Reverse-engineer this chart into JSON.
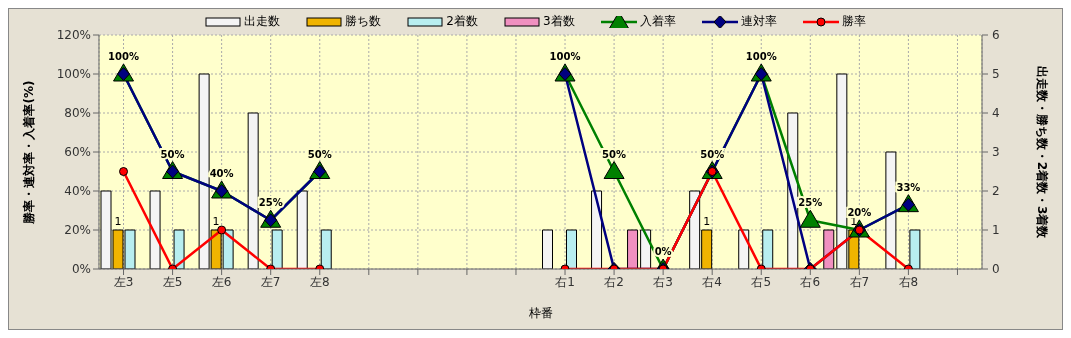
{
  "chart_data": {
    "type": "bar",
    "categories": [
      "左3",
      "左5",
      "左6",
      "左7",
      "左8",
      null,
      null,
      null,
      null,
      "右1",
      "右2",
      "右3",
      "右4",
      "右5",
      "右6",
      "右7",
      "右8",
      null
    ],
    "xlabel": "枠番",
    "ylabel": "勝率・連対率・入着率(%)",
    "y2label": "出走数・勝ち数・2着数・3着数",
    "series": [
      {
        "name": "出走数",
        "axis": "y2",
        "color": "#f4f4f4",
        "values": [
          2,
          2,
          5,
          4,
          2,
          null,
          null,
          null,
          null,
          1,
          2,
          1,
          2,
          1,
          4,
          5,
          3,
          null
        ]
      },
      {
        "name": "勝ち数",
        "axis": "y2",
        "color": "#f0b400",
        "values": [
          1,
          0,
          1,
          0,
          0,
          null,
          null,
          null,
          null,
          0,
          0,
          0,
          1,
          0,
          0,
          1,
          0,
          null
        ],
        "value_labels": [
          "1",
          null,
          "1",
          null,
          null,
          null,
          null,
          null,
          null,
          null,
          null,
          null,
          "1",
          null,
          null,
          "1",
          null,
          null
        ]
      },
      {
        "name": "2着数",
        "axis": "y2",
        "color": "#b8eef0",
        "values": [
          1,
          1,
          1,
          1,
          1,
          null,
          null,
          null,
          null,
          1,
          0,
          0,
          0,
          1,
          0,
          0,
          1,
          null
        ]
      },
      {
        "name": "3着数",
        "axis": "y2",
        "color": "#f090c0",
        "values": [
          0,
          0,
          0,
          0,
          0,
          null,
          null,
          null,
          null,
          0,
          1,
          0,
          0,
          0,
          1,
          0,
          0,
          null
        ]
      },
      {
        "name": "入着率",
        "type": "line",
        "marker": "triangle",
        "color": "#008000",
        "values": [
          100,
          50,
          40,
          25,
          50,
          null,
          null,
          null,
          null,
          100,
          50,
          0,
          50,
          100,
          25,
          20,
          33,
          null
        ],
        "value_labels": [
          "100%",
          "50%",
          "40%",
          "25%",
          "50%",
          null,
          null,
          null,
          null,
          "100%",
          "50%",
          "0%",
          "50%",
          "100%",
          "25%",
          "20%",
          "33%",
          null
        ]
      },
      {
        "name": "連対率",
        "type": "line",
        "marker": "diamond",
        "color": "#000080",
        "values": [
          100,
          50,
          40,
          25,
          50,
          null,
          null,
          null,
          null,
          100,
          0,
          0,
          50,
          100,
          0,
          20,
          33,
          null
        ]
      },
      {
        "name": "勝率",
        "type": "line",
        "marker": "circle",
        "color": "#ff0000",
        "values": [
          50,
          0,
          20,
          0,
          0,
          null,
          null,
          null,
          null,
          0,
          0,
          0,
          50,
          0,
          0,
          20,
          0,
          null
        ]
      }
    ],
    "ylim": [
      0,
      120
    ],
    "yticks": [
      {
        "value": 0,
        "label": "0%"
      },
      {
        "value": 20,
        "label": "20%"
      },
      {
        "value": 40,
        "label": "40%"
      },
      {
        "value": 60,
        "label": "60%"
      },
      {
        "value": 80,
        "label": "80%"
      },
      {
        "value": 100,
        "label": "100%"
      },
      {
        "value": 120,
        "label": "120%"
      }
    ],
    "y2lim": [
      0,
      6
    ],
    "y2ticks": [
      0,
      1,
      2,
      3,
      4,
      5,
      6
    ],
    "grid": true,
    "legend": "top",
    "line_style": "solid"
  }
}
